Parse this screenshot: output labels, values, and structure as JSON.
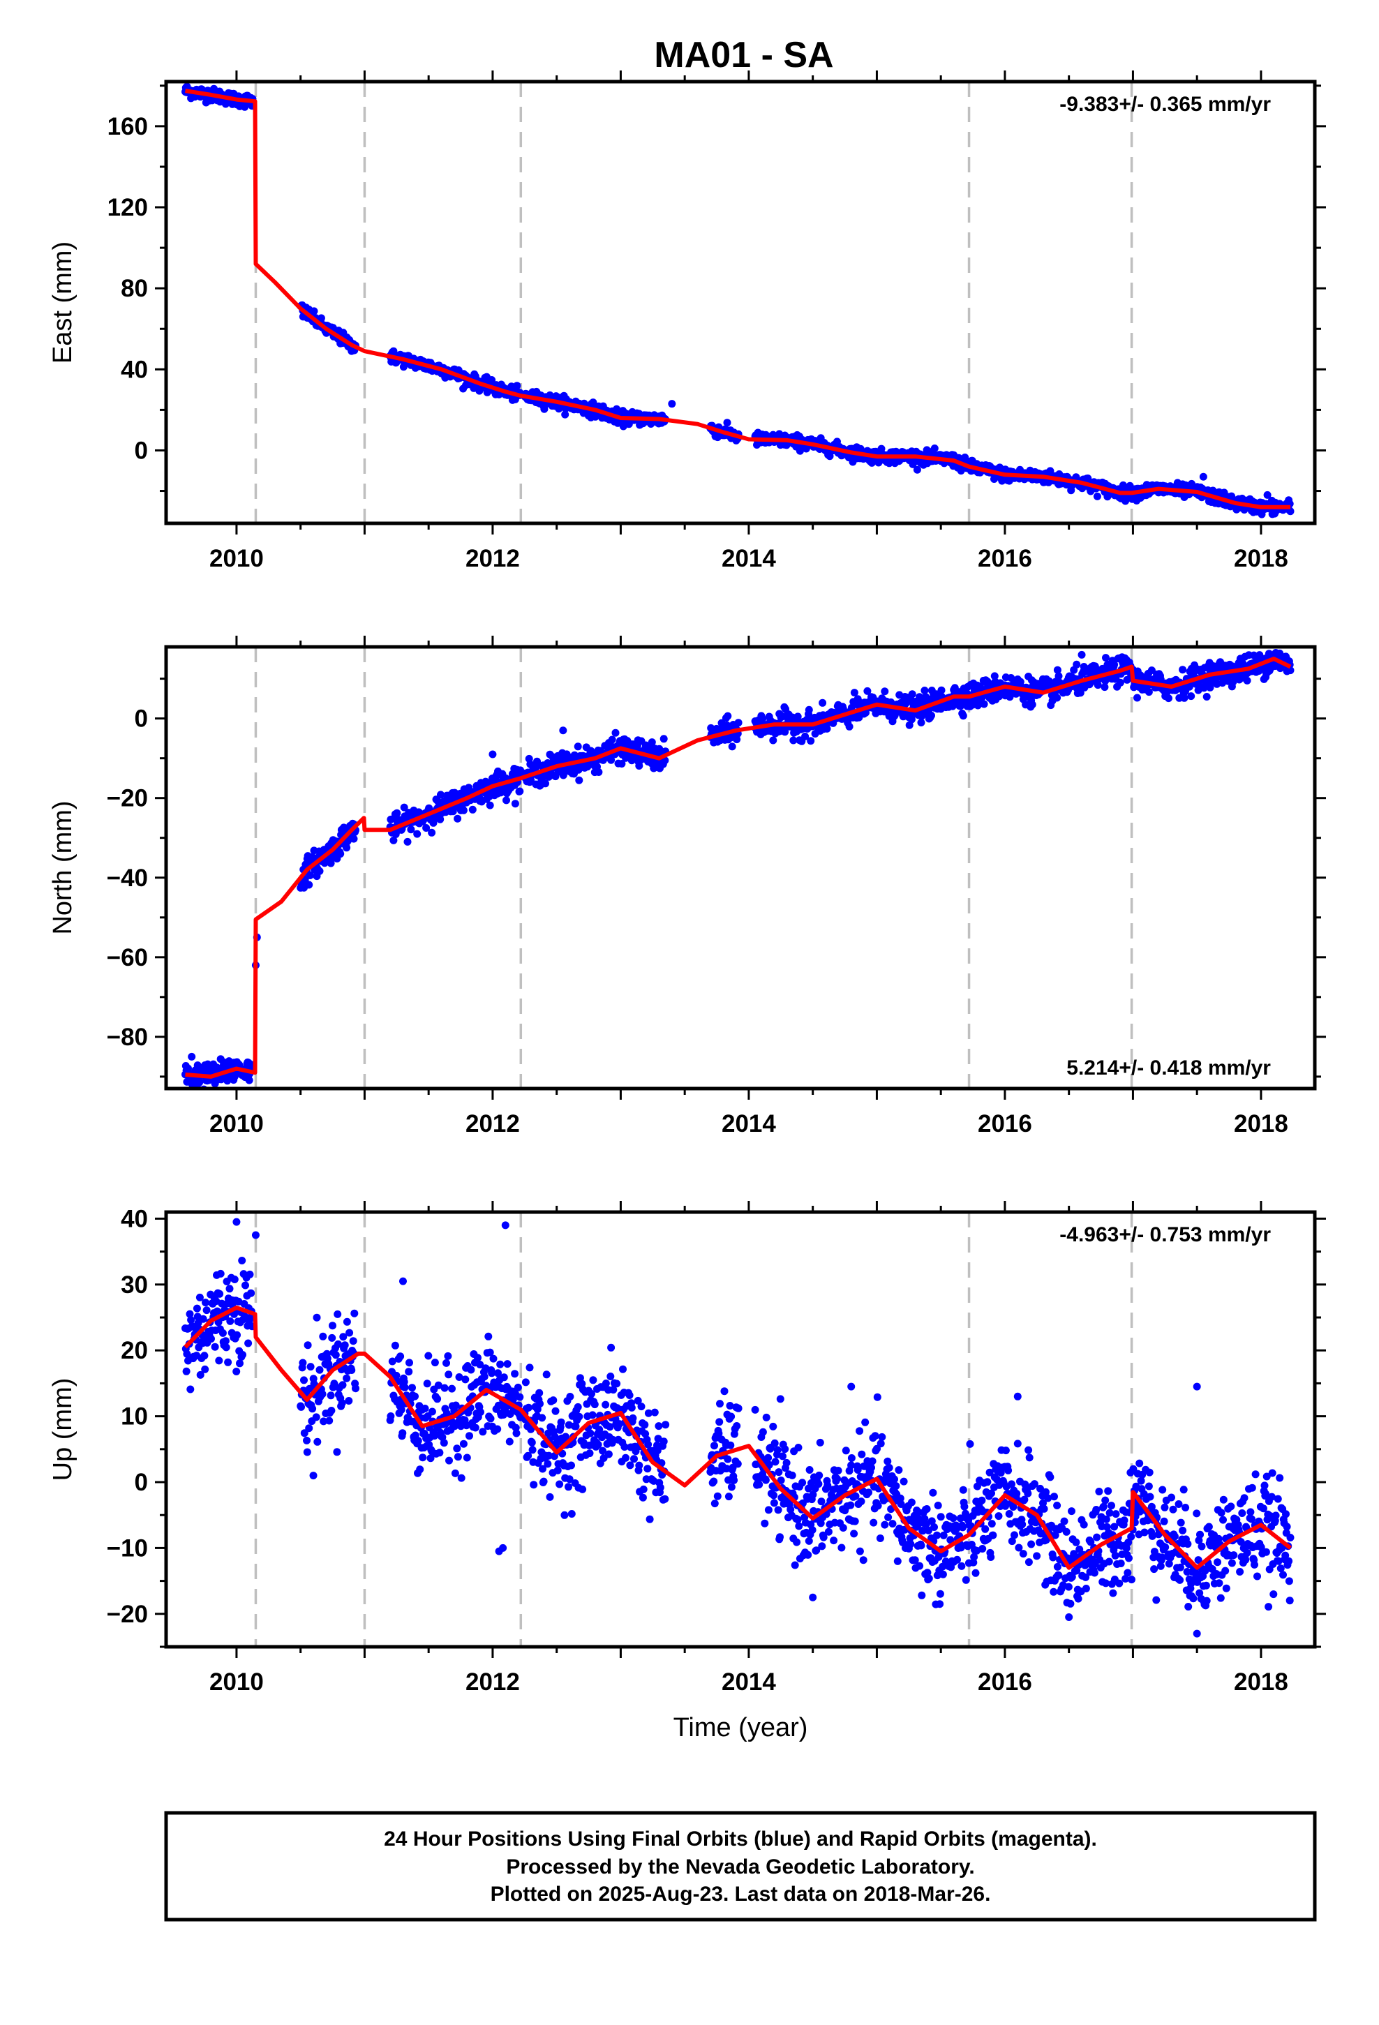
{
  "figure": {
    "title": "MA01 - SA",
    "footer": [
      "24 Hour Positions Using Final Orbits (blue) and Rapid Orbits (magenta).",
      "Processed by the Nevada Geodetic Laboratory.",
      "Plotted on 2025-Aug-23. Last data on 2018-Mar-26."
    ],
    "colors": {
      "points": "#0000ff",
      "model": "#ff0000",
      "events": "#bfbfbf",
      "frame": "#000000"
    }
  },
  "chart_data": [
    {
      "type": "scatter",
      "component": "east",
      "ylabel": "East (mm)",
      "xlabel": "",
      "rate": "-9.383+/- 0.365 mm/yr",
      "rate_position": "top-right",
      "xlim": [
        2009.45,
        2018.42
      ],
      "ylim": [
        -36,
        182
      ],
      "xticks": [
        2010,
        2012,
        2014,
        2016,
        2018
      ],
      "yticks": [
        0,
        40,
        80,
        120,
        160
      ],
      "event_lines": [
        2010.15,
        2011.0,
        2012.22,
        2015.72,
        2016.99
      ],
      "data_ranges": [
        [
          2009.6,
          2010.13
        ],
        [
          2010.5,
          2010.93
        ],
        [
          2011.2,
          2012.22
        ],
        [
          2012.25,
          2013.35
        ],
        [
          2013.7,
          2013.92
        ],
        [
          2014.05,
          2018.23
        ]
      ],
      "model": [
        [
          2009.6,
          177.5
        ],
        [
          2009.8,
          175.5
        ],
        [
          2010.0,
          173.2
        ],
        [
          2010.145,
          172.3
        ],
        [
          2010.15,
          92
        ],
        [
          2010.3,
          83
        ],
        [
          2010.5,
          70
        ],
        [
          2010.7,
          60
        ],
        [
          2010.9,
          52
        ],
        [
          2011.0,
          49
        ],
        [
          2011.3,
          45
        ],
        [
          2011.6,
          40
        ],
        [
          2011.9,
          33
        ],
        [
          2012.1,
          29
        ],
        [
          2012.22,
          27
        ],
        [
          2012.5,
          24
        ],
        [
          2012.8,
          20
        ],
        [
          2013.0,
          16
        ],
        [
          2013.3,
          15.5
        ],
        [
          2013.6,
          13
        ],
        [
          2013.8,
          9
        ],
        [
          2014.0,
          5.5
        ],
        [
          2014.3,
          5
        ],
        [
          2014.5,
          3
        ],
        [
          2014.8,
          -1
        ],
        [
          2015.0,
          -3
        ],
        [
          2015.3,
          -3
        ],
        [
          2015.6,
          -5
        ],
        [
          2015.72,
          -8
        ],
        [
          2016.0,
          -12
        ],
        [
          2016.3,
          -13
        ],
        [
          2016.6,
          -16
        ],
        [
          2016.9,
          -21
        ],
        [
          2016.99,
          -21
        ],
        [
          2017.2,
          -19
        ],
        [
          2017.5,
          -20.5
        ],
        [
          2017.8,
          -26
        ],
        [
          2018.0,
          -28
        ],
        [
          2018.23,
          -28
        ]
      ],
      "noise": 1.6,
      "outliers": [
        [
          2013.4,
          23
        ],
        [
          2017.55,
          -13
        ],
        [
          2018.05,
          -22
        ],
        [
          2010.52,
          66
        ]
      ]
    },
    {
      "type": "scatter",
      "component": "north",
      "ylabel": "North (mm)",
      "xlabel": "",
      "rate": "5.214+/- 0.418 mm/yr",
      "rate_position": "bottom-right",
      "xlim": [
        2009.45,
        2018.42
      ],
      "ylim": [
        -93,
        18
      ],
      "xticks": [
        2010,
        2012,
        2014,
        2016,
        2018
      ],
      "yticks": [
        -80,
        -60,
        -40,
        -20,
        0
      ],
      "event_lines": [
        2010.15,
        2011.0,
        2012.22,
        2015.72,
        2016.99
      ],
      "data_ranges": [
        [
          2009.6,
          2010.13
        ],
        [
          2010.5,
          2010.93
        ],
        [
          2011.2,
          2012.22
        ],
        [
          2012.25,
          2013.35
        ],
        [
          2013.7,
          2013.92
        ],
        [
          2014.05,
          2018.23
        ]
      ],
      "model": [
        [
          2009.6,
          -89.5
        ],
        [
          2009.8,
          -90
        ],
        [
          2010.0,
          -88
        ],
        [
          2010.145,
          -89
        ],
        [
          2010.15,
          -50.5
        ],
        [
          2010.35,
          -46
        ],
        [
          2010.55,
          -38
        ],
        [
          2010.75,
          -33
        ],
        [
          2010.9,
          -28
        ],
        [
          2010.995,
          -25
        ],
        [
          2011.0,
          -28
        ],
        [
          2011.2,
          -28
        ],
        [
          2011.5,
          -24
        ],
        [
          2011.8,
          -20
        ],
        [
          2012.0,
          -17
        ],
        [
          2012.22,
          -15
        ],
        [
          2012.5,
          -12
        ],
        [
          2012.8,
          -10
        ],
        [
          2013.0,
          -7.5
        ],
        [
          2013.3,
          -10
        ],
        [
          2013.6,
          -5.5
        ],
        [
          2013.9,
          -3
        ],
        [
          2014.2,
          -1.5
        ],
        [
          2014.5,
          -1.5
        ],
        [
          2014.8,
          1.5
        ],
        [
          2015.0,
          3.5
        ],
        [
          2015.3,
          2
        ],
        [
          2015.6,
          5.5
        ],
        [
          2015.72,
          5.5
        ],
        [
          2016.0,
          8
        ],
        [
          2016.3,
          6.5
        ],
        [
          2016.6,
          9.5
        ],
        [
          2016.9,
          12
        ],
        [
          2016.99,
          13
        ],
        [
          2017.0,
          9.5
        ],
        [
          2017.3,
          8
        ],
        [
          2017.6,
          11
        ],
        [
          2017.9,
          12.5
        ],
        [
          2018.1,
          15
        ],
        [
          2018.23,
          13
        ]
      ],
      "noise": 1.6,
      "outliers": [
        [
          2009.65,
          -85
        ],
        [
          2010.15,
          -62
        ],
        [
          2010.16,
          -55
        ],
        [
          2012.0,
          -9
        ],
        [
          2012.55,
          -3
        ],
        [
          2016.6,
          16
        ]
      ]
    },
    {
      "type": "scatter",
      "component": "up",
      "ylabel": "Up (mm)",
      "xlabel": "Time (year)",
      "rate": "-4.963+/- 0.753 mm/yr",
      "rate_position": "top-right",
      "xlim": [
        2009.45,
        2018.42
      ],
      "ylim": [
        -25,
        41
      ],
      "xticks": [
        2010,
        2012,
        2014,
        2016,
        2018
      ],
      "yticks": [
        -20,
        -10,
        0,
        10,
        20,
        30,
        40
      ],
      "event_lines": [
        2010.15,
        2011.0,
        2012.22,
        2015.72,
        2016.99
      ],
      "data_ranges": [
        [
          2009.6,
          2010.13
        ],
        [
          2010.5,
          2010.93
        ],
        [
          2011.2,
          2012.22
        ],
        [
          2012.25,
          2013.35
        ],
        [
          2013.7,
          2013.92
        ],
        [
          2014.05,
          2018.23
        ]
      ],
      "model": [
        [
          2009.6,
          20.5
        ],
        [
          2009.8,
          24.5
        ],
        [
          2010.0,
          26.5
        ],
        [
          2010.145,
          25.5
        ],
        [
          2010.15,
          22
        ],
        [
          2010.35,
          17
        ],
        [
          2010.55,
          12.5
        ],
        [
          2010.75,
          17
        ],
        [
          2010.95,
          19.5
        ],
        [
          2011.0,
          19.5
        ],
        [
          2011.2,
          16
        ],
        [
          2011.45,
          8.5
        ],
        [
          2011.7,
          10
        ],
        [
          2011.95,
          14
        ],
        [
          2012.22,
          11
        ],
        [
          2012.5,
          4.5
        ],
        [
          2012.75,
          9
        ],
        [
          2013.0,
          10.5
        ],
        [
          2013.25,
          3
        ],
        [
          2013.5,
          -0.5
        ],
        [
          2013.75,
          4
        ],
        [
          2014.0,
          5.5
        ],
        [
          2014.25,
          -1
        ],
        [
          2014.5,
          -5.5
        ],
        [
          2014.75,
          -2
        ],
        [
          2015.0,
          0.5
        ],
        [
          2015.25,
          -7
        ],
        [
          2015.5,
          -10.5
        ],
        [
          2015.72,
          -8
        ],
        [
          2016.0,
          -2
        ],
        [
          2016.25,
          -5
        ],
        [
          2016.5,
          -13
        ],
        [
          2016.75,
          -9.5
        ],
        [
          2016.99,
          -7
        ],
        [
          2017.0,
          -1.5
        ],
        [
          2017.25,
          -8
        ],
        [
          2017.5,
          -13
        ],
        [
          2017.75,
          -9
        ],
        [
          2018.0,
          -6.5
        ],
        [
          2018.23,
          -10
        ]
      ],
      "noise": 3.8,
      "outliers": [
        [
          2010.0,
          39.5
        ],
        [
          2010.15,
          37.5
        ],
        [
          2011.3,
          30.5
        ],
        [
          2012.1,
          39
        ],
        [
          2012.05,
          -10.5
        ],
        [
          2012.08,
          -10
        ],
        [
          2014.8,
          14.5
        ],
        [
          2017.5,
          14.5
        ],
        [
          2017.5,
          -23
        ],
        [
          2016.5,
          -20.5
        ],
        [
          2014.5,
          -17.5
        ],
        [
          2010.6,
          1
        ],
        [
          2016.1,
          13
        ]
      ]
    }
  ]
}
